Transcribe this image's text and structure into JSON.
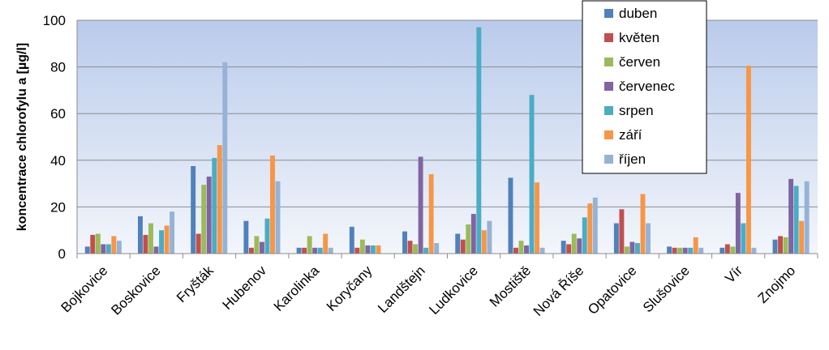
{
  "chart_data": {
    "type": "bar",
    "title": "",
    "xlabel": "",
    "ylabel": "koncentrace chlorofylu a [µg/l]",
    "ylim": [
      0,
      100
    ],
    "yticks": [
      0,
      20,
      40,
      60,
      80,
      100
    ],
    "grid": true,
    "legend_position": "top-right",
    "categories": [
      "Bojkovice",
      "Boskovice",
      "Fryšták",
      "Hubenov",
      "Karolinka",
      "Koryčany",
      "Landštejn",
      "Ludkovice",
      "Mostiště",
      "Nová Říše",
      "Opatovice",
      "Slušovice",
      "Vír",
      "Znojmo"
    ],
    "series": [
      {
        "name": "duben",
        "color": "#4F81BD",
        "values": [
          3,
          16,
          37.5,
          14,
          2.5,
          11.5,
          9.5,
          8.5,
          32.5,
          5.5,
          13,
          3,
          2.5,
          6
        ]
      },
      {
        "name": "květen",
        "color": "#C0504D",
        "values": [
          8,
          8,
          8.5,
          2.5,
          2.5,
          2.5,
          5.5,
          6,
          2.5,
          4,
          19,
          2.5,
          4,
          7.5
        ]
      },
      {
        "name": "červen",
        "color": "#9BBB59",
        "values": [
          8.5,
          13,
          29.5,
          7.5,
          7.5,
          6,
          4,
          12.5,
          5.5,
          8.5,
          3,
          2.5,
          3,
          7
        ]
      },
      {
        "name": "červenec",
        "color": "#8064A2",
        "values": [
          4,
          3,
          33,
          5,
          2.5,
          3.5,
          41.5,
          17,
          3.5,
          6.5,
          5,
          2.5,
          26,
          32
        ]
      },
      {
        "name": "srpen",
        "color": "#4BACC6",
        "values": [
          4,
          10,
          41,
          15,
          2.5,
          3.5,
          2.5,
          97,
          68,
          15.5,
          4.5,
          2.5,
          13,
          29
        ]
      },
      {
        "name": "září",
        "color": "#F79646",
        "values": [
          7.5,
          12,
          46.5,
          42,
          8.5,
          3.5,
          34,
          10,
          30.5,
          21.5,
          25.5,
          7,
          80.5,
          14
        ]
      },
      {
        "name": "říjen",
        "color": "#95B3D7",
        "values": [
          5.5,
          18,
          82,
          31,
          2.5,
          null,
          4.5,
          14,
          2.5,
          24,
          13,
          2.5,
          2.5,
          31
        ]
      }
    ]
  },
  "plot_gradient": {
    "top": "#b9cbeb",
    "bottom": "#f3f6fb"
  }
}
